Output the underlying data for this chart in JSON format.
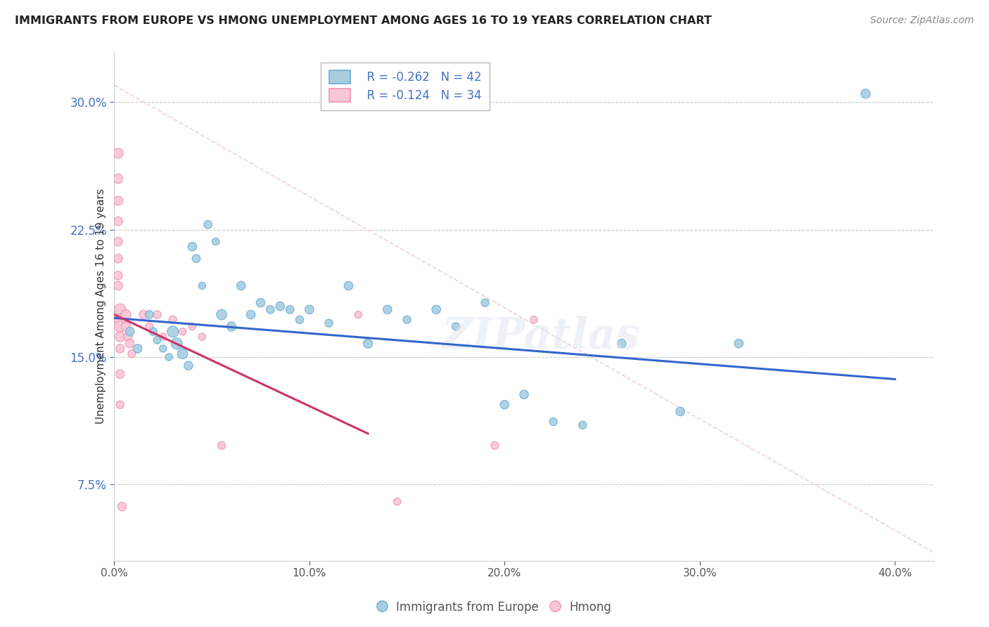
{
  "title": "IMMIGRANTS FROM EUROPE VS HMONG UNEMPLOYMENT AMONG AGES 16 TO 19 YEARS CORRELATION CHART",
  "source": "Source: ZipAtlas.com",
  "ylabel": "Unemployment Among Ages 16 to 19 years",
  "xlim": [
    0.0,
    0.42
  ],
  "ylim": [
    0.03,
    0.33
  ],
  "xtick_values": [
    0.0,
    0.1,
    0.2,
    0.3,
    0.4
  ],
  "xtick_labels": [
    "0.0%",
    "10.0%",
    "20.0%",
    "30.0%",
    "40.0%"
  ],
  "ytick_values": [
    0.075,
    0.15,
    0.225,
    0.3
  ],
  "ytick_labels": [
    "7.5%",
    "15.0%",
    "22.5%",
    "30.0%"
  ],
  "legend_europe_r": "R = -0.262",
  "legend_europe_n": "N = 42",
  "legend_hmong_r": "R = -0.124",
  "legend_hmong_n": "N = 34",
  "legend_europe_label": "Immigrants from Europe",
  "legend_hmong_label": "Hmong",
  "blue_color": "#a8cce0",
  "blue_border": "#6aafd4",
  "pink_color": "#f9c6d5",
  "pink_border": "#f093b0",
  "trend_blue": "#3366cc",
  "trend_pink": "#cc3366",
  "watermark": "ZIPatlas",
  "europe_x": [
    0.008,
    0.012,
    0.018,
    0.02,
    0.022,
    0.025,
    0.028,
    0.03,
    0.032,
    0.035,
    0.038,
    0.04,
    0.042,
    0.045,
    0.048,
    0.052,
    0.055,
    0.06,
    0.065,
    0.07,
    0.075,
    0.08,
    0.085,
    0.09,
    0.095,
    0.1,
    0.11,
    0.12,
    0.13,
    0.14,
    0.15,
    0.165,
    0.175,
    0.19,
    0.2,
    0.21,
    0.225,
    0.24,
    0.26,
    0.29,
    0.32,
    0.385
  ],
  "europe_y": [
    0.165,
    0.155,
    0.175,
    0.165,
    0.16,
    0.155,
    0.15,
    0.165,
    0.158,
    0.152,
    0.145,
    0.215,
    0.208,
    0.192,
    0.228,
    0.218,
    0.175,
    0.168,
    0.192,
    0.175,
    0.182,
    0.178,
    0.18,
    0.178,
    0.172,
    0.178,
    0.17,
    0.192,
    0.158,
    0.178,
    0.172,
    0.178,
    0.168,
    0.182,
    0.122,
    0.128,
    0.112,
    0.11,
    0.158,
    0.118,
    0.158,
    0.305
  ],
  "europe_s": [
    80,
    80,
    70,
    65,
    60,
    55,
    55,
    130,
    130,
    110,
    80,
    80,
    70,
    55,
    70,
    55,
    110,
    90,
    80,
    80,
    80,
    70,
    80,
    70,
    65,
    80,
    65,
    80,
    90,
    80,
    65,
    80,
    65,
    65,
    80,
    80,
    65,
    65,
    80,
    80,
    80,
    90
  ],
  "hmong_x": [
    0.002,
    0.002,
    0.002,
    0.002,
    0.002,
    0.002,
    0.002,
    0.002,
    0.003,
    0.003,
    0.003,
    0.003,
    0.003,
    0.003,
    0.003,
    0.004,
    0.006,
    0.006,
    0.007,
    0.008,
    0.009,
    0.015,
    0.018,
    0.022,
    0.025,
    0.03,
    0.035,
    0.04,
    0.045,
    0.055,
    0.125,
    0.145,
    0.195,
    0.215
  ],
  "hmong_y": [
    0.27,
    0.255,
    0.242,
    0.23,
    0.218,
    0.208,
    0.198,
    0.192,
    0.178,
    0.172,
    0.168,
    0.162,
    0.155,
    0.14,
    0.122,
    0.062,
    0.175,
    0.168,
    0.162,
    0.158,
    0.152,
    0.175,
    0.168,
    0.175,
    0.162,
    0.172,
    0.165,
    0.168,
    0.162,
    0.098,
    0.175,
    0.065,
    0.098,
    0.172
  ],
  "hmong_s": [
    105,
    95,
    90,
    80,
    80,
    80,
    80,
    80,
    140,
    140,
    130,
    105,
    80,
    80,
    65,
    80,
    105,
    90,
    80,
    80,
    65,
    80,
    65,
    65,
    55,
    65,
    55,
    55,
    55,
    65,
    55,
    55,
    65,
    55
  ],
  "diag_line_x": [
    0.0,
    0.42
  ],
  "diag_line_y": [
    0.31,
    0.035
  ]
}
